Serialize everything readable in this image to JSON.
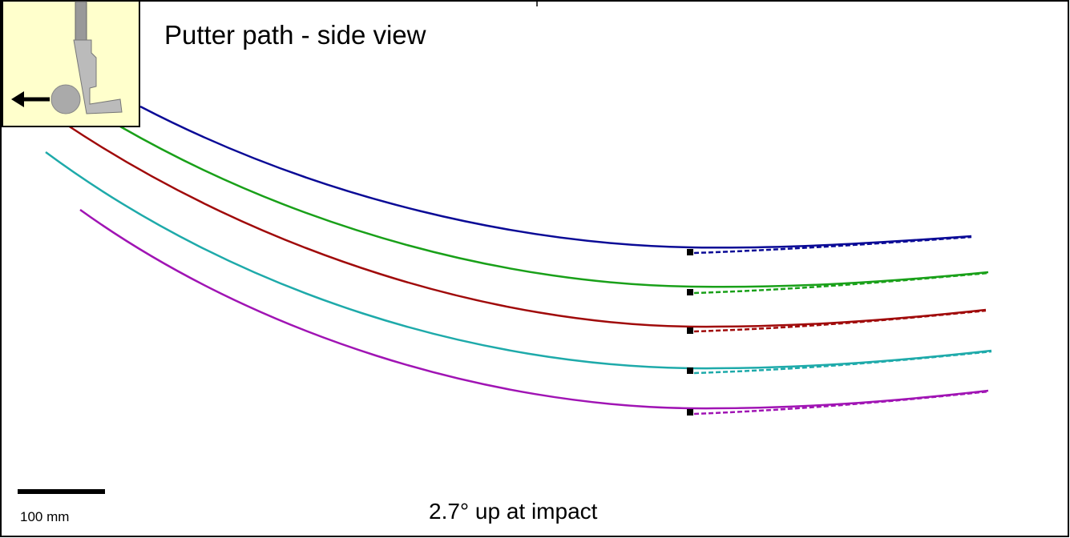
{
  "title": "Putter path - side view",
  "scale_label": "100 mm",
  "caption": "2.7° up at impact"
}
